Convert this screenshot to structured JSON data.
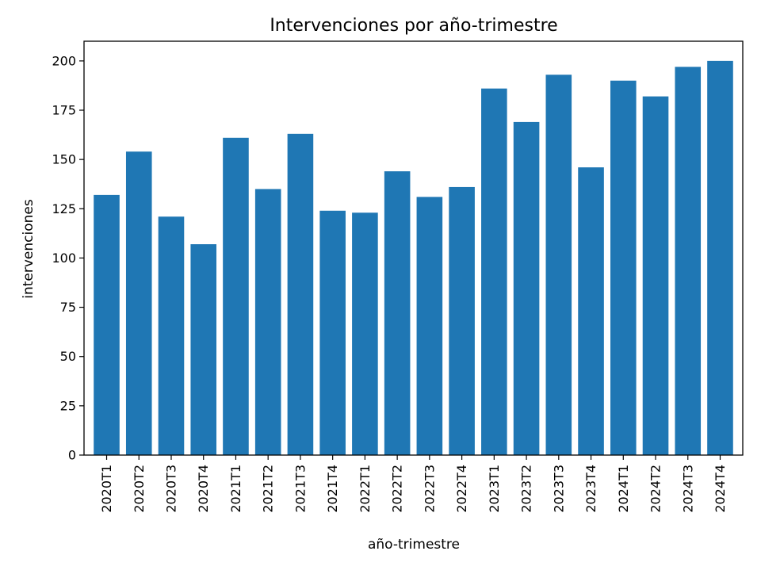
{
  "chart_data": {
    "type": "bar",
    "title": "Intervenciones por año-trimestre",
    "xlabel": "año-trimestre",
    "ylabel": "intervenciones",
    "categories": [
      "2020T1",
      "2020T2",
      "2020T3",
      "2020T4",
      "2021T1",
      "2021T2",
      "2021T3",
      "2021T4",
      "2022T1",
      "2022T2",
      "2022T3",
      "2022T4",
      "2023T1",
      "2023T2",
      "2023T3",
      "2023T4",
      "2024T1",
      "2024T2",
      "2024T3",
      "2024T4"
    ],
    "values": [
      132,
      154,
      121,
      107,
      161,
      135,
      163,
      124,
      123,
      144,
      131,
      136,
      186,
      169,
      193,
      146,
      190,
      182,
      197,
      200
    ],
    "ylim": [
      0,
      210
    ],
    "yticks": [
      0,
      25,
      50,
      75,
      100,
      125,
      150,
      175,
      200
    ],
    "bar_color": "#1f77b4",
    "grid": false,
    "legend": "none"
  }
}
